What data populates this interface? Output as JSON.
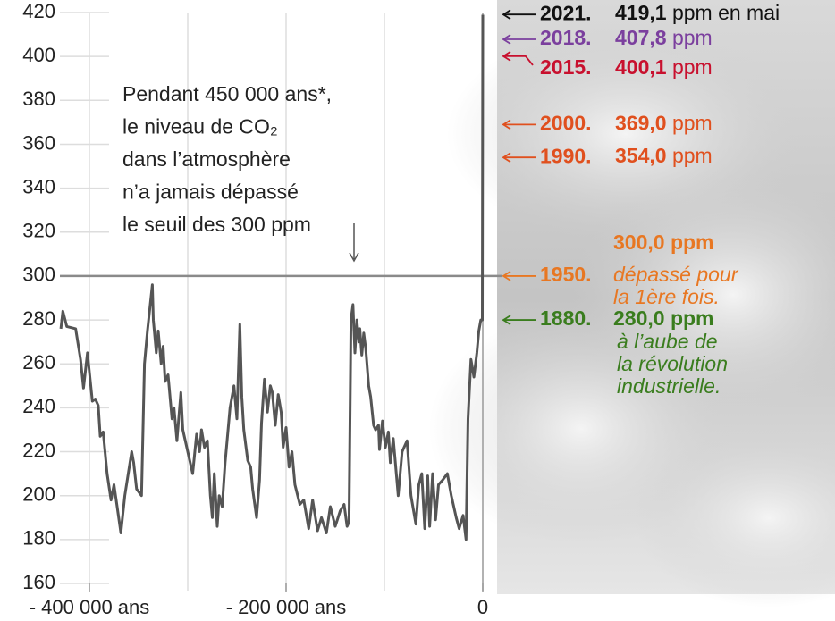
{
  "chart_data": {
    "type": "line",
    "x": [
      -429000,
      -427000,
      -423000,
      -414000,
      -409000,
      -406000,
      -402000,
      -397000,
      -394000,
      -391000,
      -389000,
      -386000,
      -382000,
      -378000,
      -375000,
      -368000,
      -364000,
      -357000,
      -355000,
      -352000,
      -347000,
      -344000,
      -341000,
      -336000,
      -335000,
      -332000,
      -330000,
      -327000,
      -325000,
      -323000,
      -320000,
      -316000,
      -314000,
      -311000,
      -307000,
      -305000,
      -300000,
      -295000,
      -291000,
      -288000,
      -286000,
      -283000,
      -280000,
      -277000,
      -275000,
      -273000,
      -270000,
      -268000,
      -265000,
      -262000,
      -257000,
      -253000,
      -250000,
      -247000,
      -245000,
      -243000,
      -239000,
      -236000,
      -234000,
      -230000,
      -227000,
      -225000,
      -222000,
      -219000,
      -216000,
      -214000,
      -211000,
      -208000,
      -205000,
      -203000,
      -200000,
      -197000,
      -194000,
      -191000,
      -186000,
      -182000,
      -177000,
      -173000,
      -168000,
      -164000,
      -159000,
      -155000,
      -150000,
      -145000,
      -141000,
      -138000,
      -136000,
      -134000,
      -132000,
      -130000,
      -128000,
      -126000,
      -125000,
      -123000,
      -121000,
      -119000,
      -116000,
      -114000,
      -111000,
      -109000,
      -106000,
      -105000,
      -102000,
      -99000,
      -96000,
      -94000,
      -91000,
      -86000,
      -82000,
      -77000,
      -73000,
      -68000,
      -65000,
      -62000,
      -59000,
      -56000,
      -54000,
      -51000,
      -48000,
      -45000,
      -41000,
      -36000,
      -32000,
      -27000,
      -24000,
      -20000,
      -17000,
      -15000,
      -12000,
      -9000,
      -6000,
      -4000,
      -2000,
      -500,
      0
    ],
    "series": [
      {
        "color": "#555555",
        "values": [
          276,
          284,
          277,
          276,
          262,
          249,
          265,
          243,
          244,
          241,
          227,
          229,
          210,
          198,
          205,
          183,
          200,
          220,
          215,
          203,
          200,
          260,
          275,
          296,
          280,
          265,
          275,
          260,
          268,
          252,
          255,
          235,
          240,
          225,
          247,
          230,
          220,
          210,
          228,
          220,
          230,
          222,
          225,
          200,
          190,
          210,
          186,
          200,
          195,
          215,
          240,
          250,
          235,
          278,
          245,
          230,
          216,
          213,
          203,
          190,
          207,
          233,
          253,
          238,
          250,
          247,
          232,
          246,
          238,
          222,
          231,
          213,
          220,
          205,
          196,
          198,
          185,
          198,
          184,
          190,
          183,
          195,
          186,
          193,
          196,
          186,
          188,
          280,
          287,
          265,
          280,
          270,
          276,
          264,
          274,
          267,
          250,
          245,
          232,
          230,
          232,
          221,
          234,
          222,
          229,
          215,
          226,
          200,
          220,
          225,
          200,
          187,
          205,
          210,
          185,
          209,
          186,
          210,
          189,
          205,
          207,
          210,
          200,
          190,
          185,
          191,
          180,
          235,
          262,
          254,
          265,
          275,
          280,
          280,
          419
        ]
      }
    ],
    "xlim": [
      -430000,
      10000
    ],
    "ylim": [
      160,
      420
    ],
    "yticks": [
      160,
      180,
      200,
      220,
      240,
      260,
      280,
      300,
      320,
      340,
      360,
      380,
      400,
      420
    ],
    "xticks": [
      {
        "value": -400000,
        "label": "- 400 000 ans"
      },
      {
        "value": -200000,
        "label": "- 200 000 ans"
      },
      0
    ],
    "xgrid": [
      -400000,
      -300000,
      -200000,
      -100000,
      0
    ],
    "threshold": 300,
    "note_lines": [
      "Pendant 450 000 ans*,",
      "le niveau de CO₂",
      "dans l’atmosphère",
      "n’a jamais dépassé",
      "le seuil des 300 ppm"
    ],
    "annotations": [
      {
        "year": "2021.",
        "value": 419.1,
        "value_label": "419,1",
        "unit": "ppm en mai",
        "color": "#111111"
      },
      {
        "year": "2018.",
        "value": 407.8,
        "value_label": "407,8",
        "unit": "ppm",
        "color": "#7b3f9e"
      },
      {
        "year": "2015.",
        "value": 400.1,
        "value_label": "400,1",
        "unit": "ppm",
        "color": "#c8102e"
      },
      {
        "year": "2000.",
        "value": 369.0,
        "value_label": "369,0",
        "unit": "ppm",
        "color": "#e0501e"
      },
      {
        "year": "1990.",
        "value": 354.0,
        "value_label": "354,0",
        "unit": "ppm",
        "color": "#e0501e"
      },
      {
        "year": "1950.",
        "value": 300.0,
        "value_label": "300,0",
        "unit": "ppm",
        "color": "#e87722",
        "note": [
          "dépassé pour",
          "la 1ère fois."
        ]
      },
      {
        "year": "1880.",
        "value": 280.0,
        "value_label": "280,0",
        "unit": "ppm",
        "color": "#3a7d1e",
        "note": [
          "à l’aube de",
          "la révolution",
          "industrielle."
        ]
      }
    ]
  }
}
